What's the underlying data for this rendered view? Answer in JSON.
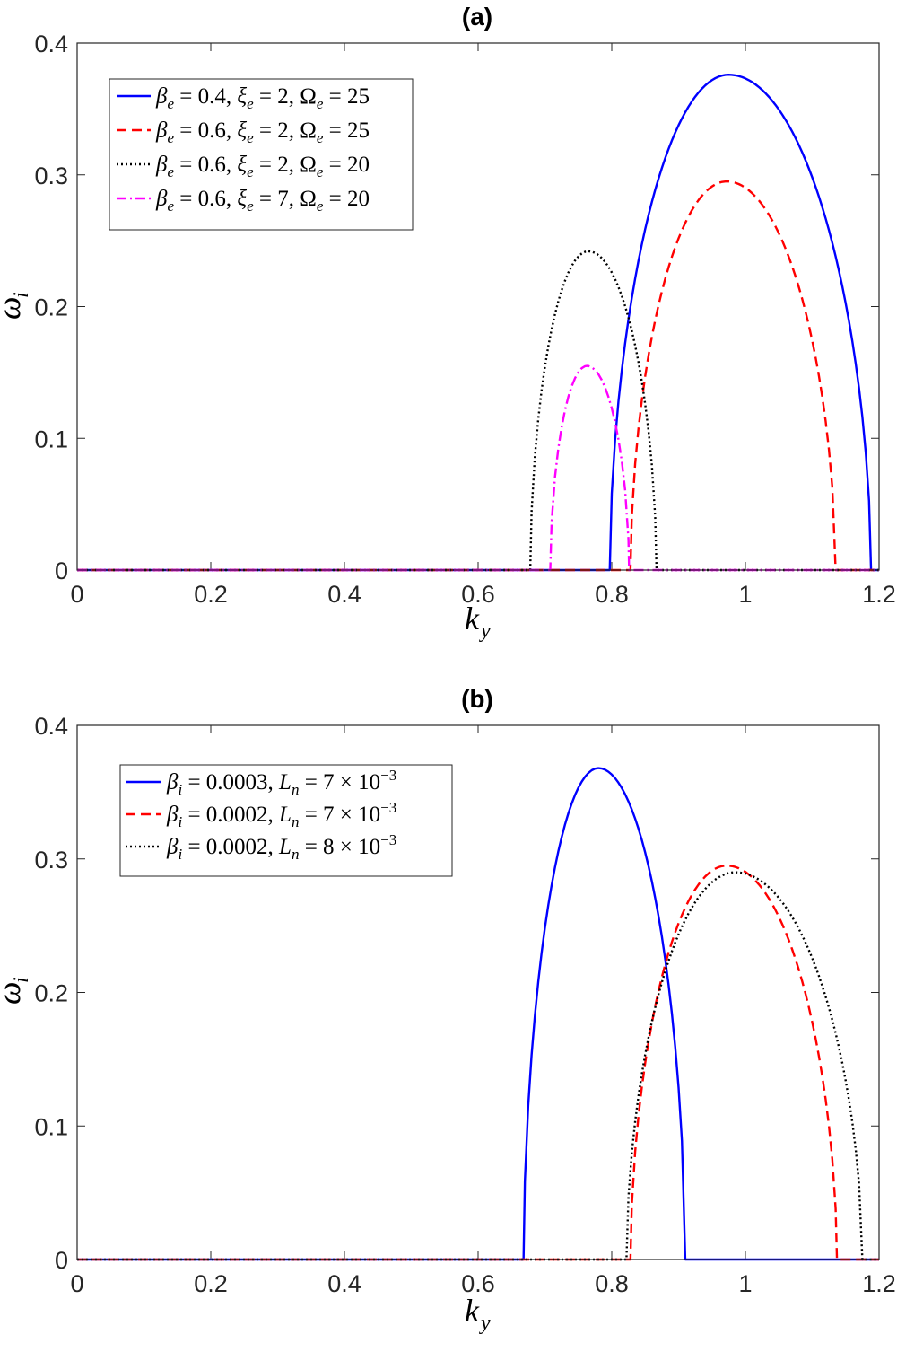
{
  "chart_data": [
    {
      "type": "line",
      "title": "(a)",
      "xlabel": "k_y",
      "ylabel": "ω_i",
      "xlim": [
        0,
        1.2
      ],
      "ylim": [
        0,
        0.4
      ],
      "xticks": [
        "0",
        "0.2",
        "0.4",
        "0.6",
        "0.8",
        "1",
        "1.2"
      ],
      "yticks": [
        "0",
        "0.1",
        "0.2",
        "0.3",
        "0.4"
      ],
      "grid": false,
      "legend_position": "top-left",
      "series": [
        {
          "name": "β_e = 0.4, ξ_e = 2, Ω_e = 25",
          "color": "#0000ff",
          "dash": "solid",
          "k_start": 0.797,
          "k_end": 1.188,
          "peak_k": 0.975,
          "peak": 0.376
        },
        {
          "name": "β_e = 0.6, ξ_e = 2, Ω_e = 25",
          "color": "#ff0000",
          "dash": "dashed",
          "k_start": 0.828,
          "k_end": 1.135,
          "peak_k": 0.972,
          "peak": 0.295
        },
        {
          "name": "β_e = 0.6, ξ_e = 2, Ω_e = 20",
          "color": "#000000",
          "dash": "dotted",
          "k_start": 0.678,
          "k_end": 0.867,
          "peak_k": 0.765,
          "peak": 0.242
        },
        {
          "name": "β_e = 0.6, ξ_e = 7, Ω_e = 20",
          "color": "#ff00ff",
          "dash": "dashdot",
          "k_start": 0.708,
          "k_end": 0.826,
          "peak_k": 0.763,
          "peak": 0.155
        }
      ]
    },
    {
      "type": "line",
      "title": "(b)",
      "xlabel": "k_y",
      "ylabel": "ω_i",
      "xlim": [
        0,
        1.2
      ],
      "ylim": [
        0,
        0.4
      ],
      "xticks": [
        "0",
        "0.2",
        "0.4",
        "0.6",
        "0.8",
        "1",
        "1.2"
      ],
      "yticks": [
        "0",
        "0.1",
        "0.2",
        "0.3",
        "0.4"
      ],
      "grid": false,
      "legend_position": "top-left",
      "series": [
        {
          "name": "β_i = 0.0003, L_n = 7 × 10^-3",
          "color": "#0000ff",
          "dash": "solid",
          "k_start": 0.668,
          "k_end": 0.91,
          "peak_k": 0.78,
          "peak": 0.368
        },
        {
          "name": "β_i = 0.0002, L_n = 7 × 10^-3",
          "color": "#ff0000",
          "dash": "dashed",
          "k_start": 0.828,
          "k_end": 1.137,
          "peak_k": 0.972,
          "peak": 0.295
        },
        {
          "name": "β_i = 0.0002, L_n = 8 × 10^-3",
          "color": "#000000",
          "dash": "dotted",
          "k_start": 0.822,
          "k_end": 1.175,
          "peak_k": 0.985,
          "peak": 0.29
        }
      ]
    }
  ],
  "legend_a": [
    {
      "p1": "β",
      "s1": "e",
      "t1": " = 0.4, ",
      "p2": "ξ",
      "s2": "e",
      "t2": " = 2, ",
      "p3": "Ω",
      "s3": "e",
      "t3": " = 25"
    },
    {
      "p1": "β",
      "s1": "e",
      "t1": " = 0.6, ",
      "p2": "ξ",
      "s2": "e",
      "t2": " = 2, ",
      "p3": "Ω",
      "s3": "e",
      "t3": " = 25"
    },
    {
      "p1": "β",
      "s1": "e",
      "t1": " = 0.6, ",
      "p2": "ξ",
      "s2": "e",
      "t2": " = 2, ",
      "p3": "Ω",
      "s3": "e",
      "t3": " = 20"
    },
    {
      "p1": "β",
      "s1": "e",
      "t1": " = 0.6, ",
      "p2": "ξ",
      "s2": "e",
      "t2": " = 7, ",
      "p3": "Ω",
      "s3": "e",
      "t3": " = 20"
    }
  ],
  "legend_b": [
    {
      "p1": "β",
      "s1": "i",
      "t1": " = 0.0003, ",
      "p2": "L",
      "s2": "n",
      "t2": " = 7 × 10",
      "sup": "−3"
    },
    {
      "p1": "β",
      "s1": "i",
      "t1": " = 0.0002, ",
      "p2": "L",
      "s2": "n",
      "t2": " = 7 × 10",
      "sup": "−3"
    },
    {
      "p1": "β",
      "s1": "i",
      "t1": " = 0.0002, ",
      "p2": "L",
      "s2": "n",
      "t2": " = 8 × 10",
      "sup": "−3"
    }
  ],
  "axis_text": {
    "x_main": "k",
    "x_sub": "y",
    "y_main": "ω",
    "y_sub": "i"
  }
}
